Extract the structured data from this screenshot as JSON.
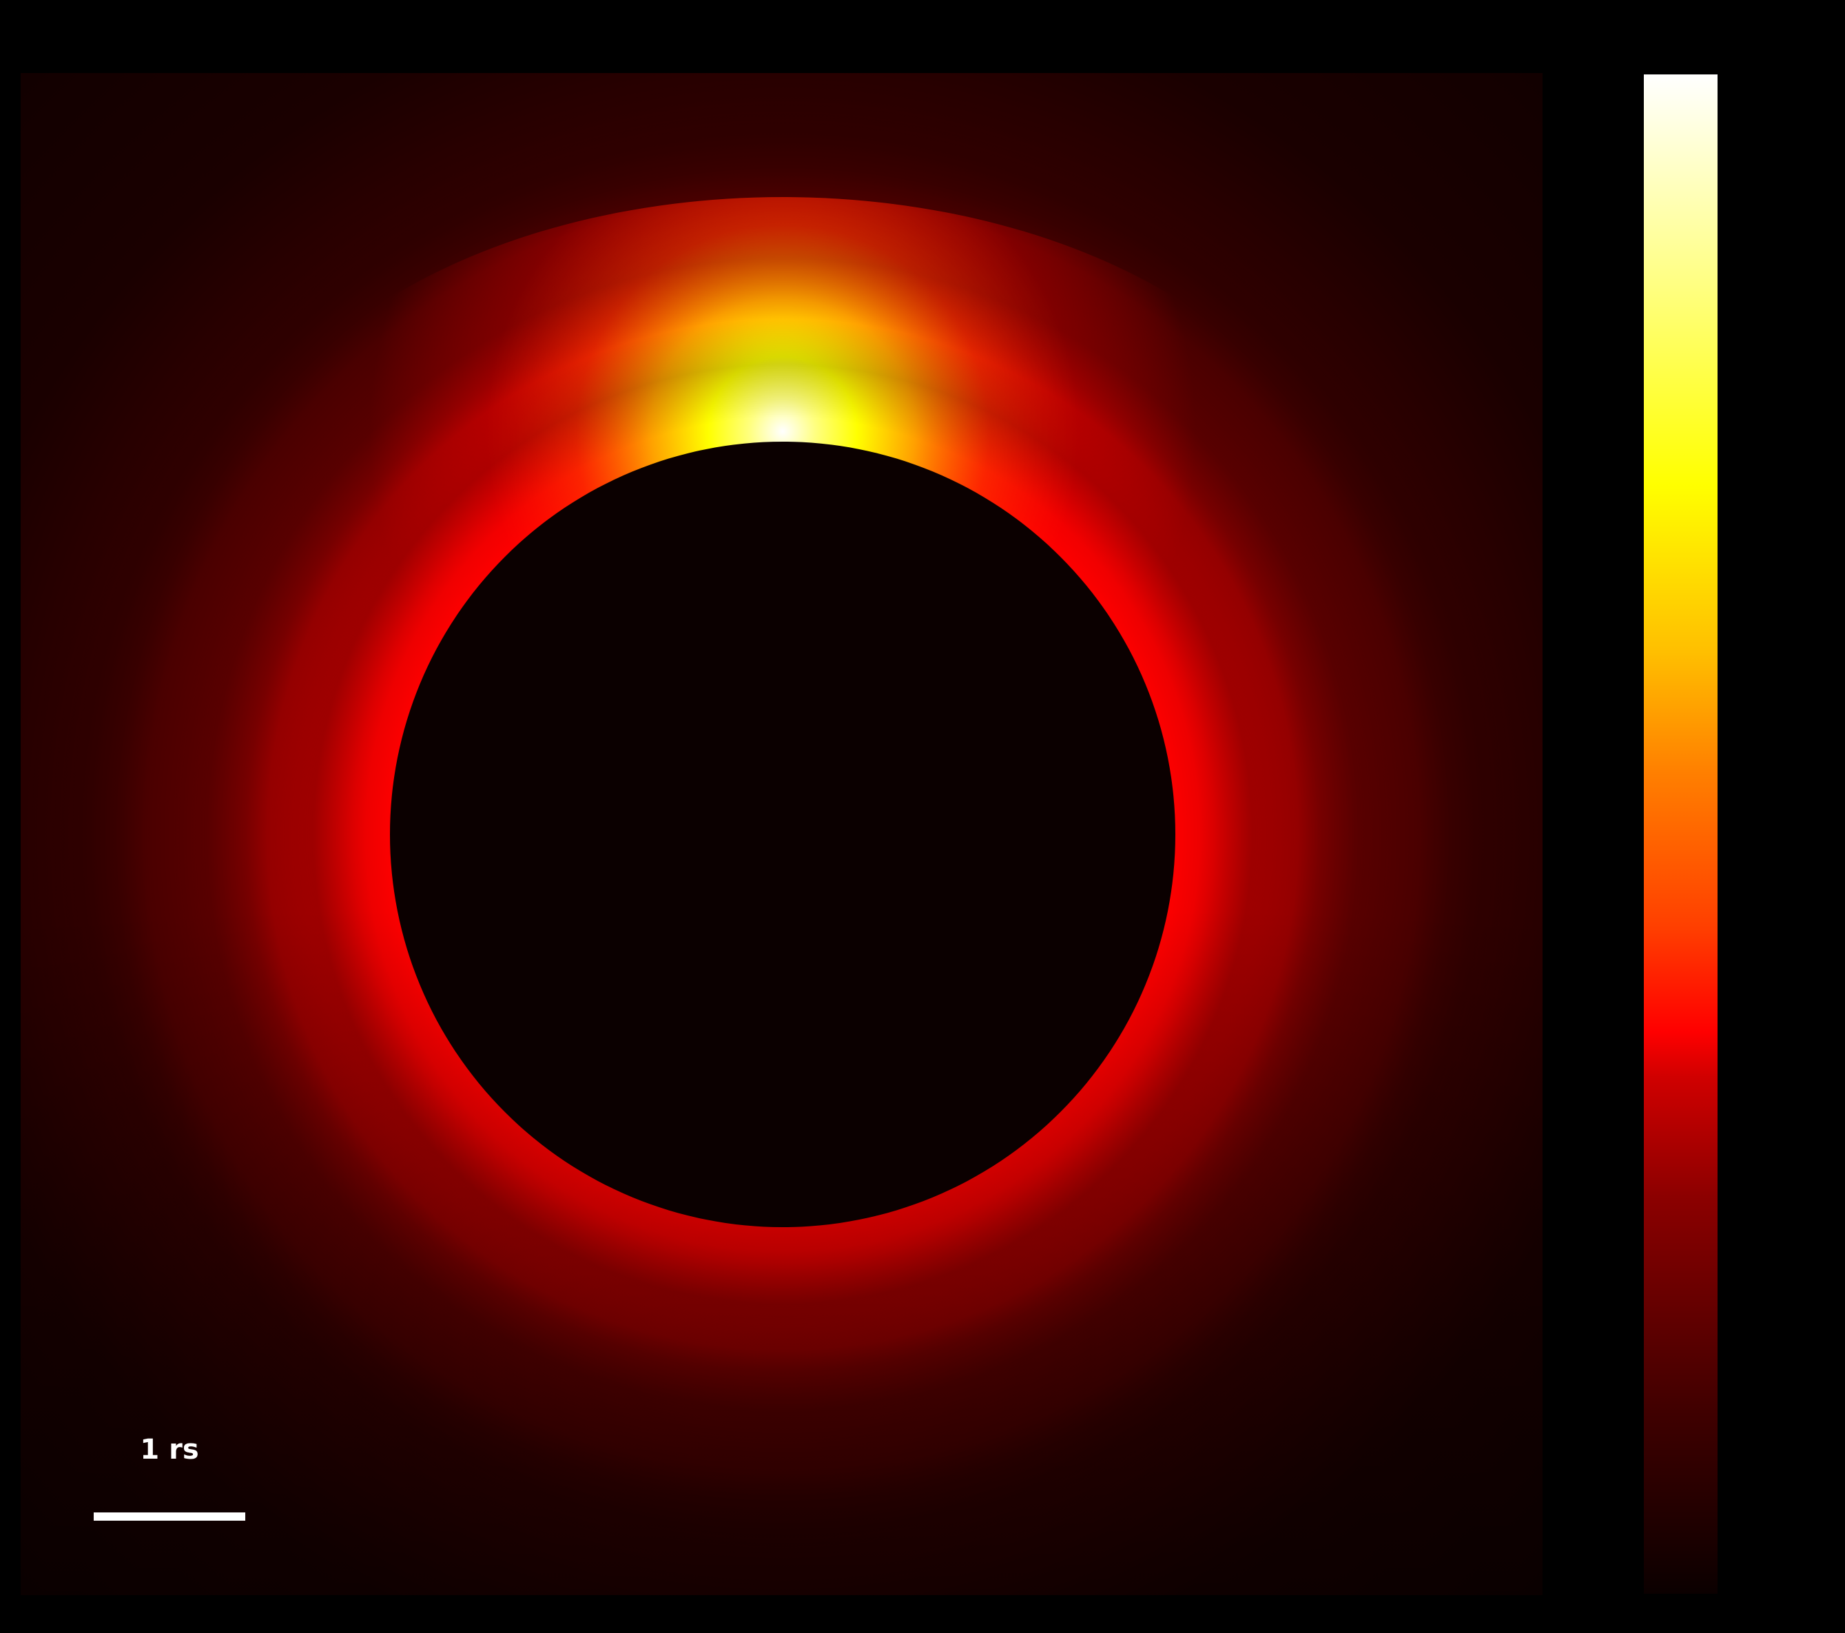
{
  "figure": {
    "background_color": "#000000",
    "scalebar": {
      "label": "1 rs",
      "color": "#ffffff"
    },
    "colormap": {
      "name": "hot",
      "stops": [
        "#0b0000",
        "#400000",
        "#8b0000",
        "#ff0000",
        "#ff7f00",
        "#ffff00",
        "#ffffff"
      ]
    },
    "occulter": {
      "color": "#0b0000"
    }
  }
}
